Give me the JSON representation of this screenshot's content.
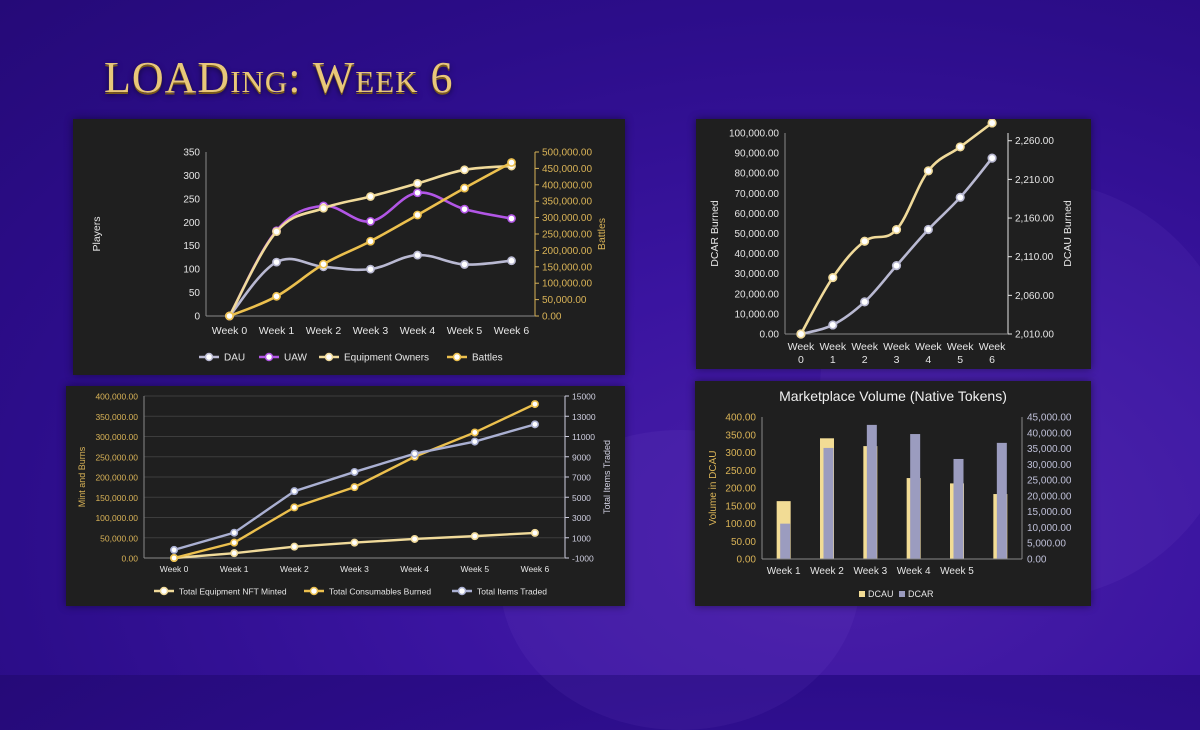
{
  "page": {
    "title": "LOADing: Week 6"
  },
  "colors": {
    "dau": "#b9b9d2",
    "uaw": "#b256e6",
    "equip": "#f0da9a",
    "battles": "#ecc04e",
    "items": "#aab0d2",
    "dcau": "#f2dc95",
    "dcar": "#9b9cbf",
    "axis_gold": "#d9b357"
  },
  "chart_data": [
    {
      "id": "players",
      "type": "line",
      "categories": [
        "Week 0",
        "Week 1",
        "Week 2",
        "Week 3",
        "Week 4",
        "Week 5",
        "Week 6"
      ],
      "ylabel": "Players",
      "y2label": "Battles",
      "ylim": [
        0,
        350
      ],
      "y_ticks": [
        "0",
        "50",
        "100",
        "150",
        "200",
        "250",
        "300",
        "350"
      ],
      "y2lim": [
        0,
        500000
      ],
      "y2_ticks": [
        "0.00",
        "50,000.00",
        "100,000.00",
        "150,000.00",
        "200,000.00",
        "250,000.00",
        "300,000.00",
        "350,000.00",
        "400,000.00",
        "450,000.00",
        "500,000.00"
      ],
      "series": [
        {
          "name": "DAU",
          "axis": "y",
          "color_key": "dau",
          "values": [
            0,
            115,
            105,
            100,
            130,
            110,
            118
          ]
        },
        {
          "name": "UAW",
          "axis": "y",
          "color_key": "uaw",
          "values": [
            0,
            182,
            235,
            202,
            263,
            228,
            208
          ]
        },
        {
          "name": "Equipment Owners",
          "axis": "y",
          "color_key": "equip",
          "values": [
            0,
            180,
            230,
            255,
            283,
            312,
            320
          ]
        },
        {
          "name": "Battles",
          "axis": "y2",
          "color_key": "battles",
          "values": [
            0,
            60000,
            158000,
            228000,
            308000,
            390000,
            468000
          ]
        }
      ],
      "legend": "bottom"
    },
    {
      "id": "dcar-dcau-burned",
      "type": "line",
      "categories": [
        "Week 0",
        "Week 1",
        "Week 2",
        "Week 3",
        "Week 4",
        "Week 5",
        "Week 6"
      ],
      "ylabel": "DCAR Burned",
      "y2label": "DCAU Burned",
      "ylim": [
        0,
        100000
      ],
      "y_ticks": [
        "0.00",
        "10,000.00",
        "20,000.00",
        "30,000.00",
        "40,000.00",
        "50,000.00",
        "60,000.00",
        "70,000.00",
        "80,000.00",
        "90,000.00",
        "100,000.00"
      ],
      "y2lim": [
        2010,
        2270
      ],
      "y2_ticks": [
        "2,010.00",
        "2,060.00",
        "2,110.00",
        "2,160.00",
        "2,210.00",
        "2,260.00"
      ],
      "series": [
        {
          "name": "DCAR Burned",
          "axis": "y",
          "color_key": "dau",
          "values": [
            0,
            4500,
            16000,
            34000,
            52000,
            68000,
            87500
          ]
        },
        {
          "name": "DCAU Burned",
          "axis": "y2",
          "color_key": "equip",
          "values": [
            2010,
            2083,
            2130,
            2145,
            2221,
            2252,
            2283
          ]
        }
      ]
    },
    {
      "id": "mint-burns",
      "type": "line",
      "categories": [
        "Week 0",
        "Week 1",
        "Week 2",
        "Week 3",
        "Week 4",
        "Week 5",
        "Week 6"
      ],
      "ylabel": "Mint and Burns",
      "y2label": "Total Items Traded",
      "ylim": [
        0,
        400000
      ],
      "y_ticks": [
        "0.00",
        "50,000.00",
        "100,000.00",
        "150,000.00",
        "200,000.00",
        "250,000.00",
        "300,000.00",
        "350,000.00",
        "400,000.00"
      ],
      "y2lim": [
        -1000,
        15000
      ],
      "y2_ticks": [
        "-1000",
        "1000",
        "3000",
        "5000",
        "7000",
        "9000",
        "11000",
        "13000",
        "15000"
      ],
      "series": [
        {
          "name": "Total Equipment NFT  Minted",
          "axis": "y",
          "color_key": "equip",
          "values": [
            0,
            12000,
            28000,
            38000,
            47000,
            54000,
            62000
          ]
        },
        {
          "name": "Total Consumables Burned",
          "axis": "y",
          "color_key": "battles",
          "values": [
            0,
            38000,
            125000,
            175000,
            250000,
            310000,
            380000
          ]
        },
        {
          "name": "Total Items Traded",
          "axis": "y2",
          "color_key": "items",
          "values": [
            -200,
            1500,
            5600,
            7500,
            9300,
            10500,
            12200
          ]
        }
      ],
      "legend": "bottom"
    },
    {
      "id": "marketplace-volume",
      "type": "bar",
      "title": "Marketplace Volume (Native Tokens)",
      "categories": [
        "Week 1",
        "Week 2",
        "Week 3",
        "Week 4",
        "Week 5",
        ""
      ],
      "ylabel": "Volume in DCAU",
      "ylim": [
        0,
        400
      ],
      "y_ticks": [
        "0.00",
        "50.00",
        "100.00",
        "150.00",
        "200.00",
        "250.00",
        "300.00",
        "350.00",
        "400.00"
      ],
      "y2lim": [
        0,
        45000
      ],
      "y2_ticks": [
        "0.00",
        "5,000.00",
        "10,000.00",
        "15,000.00",
        "20,000.00",
        "25,000.00",
        "30,000.00",
        "35,000.00",
        "40,000.00",
        "45,000.00"
      ],
      "series": [
        {
          "name": "DCAU",
          "axis": "y",
          "color_key": "dcau",
          "values": [
            163,
            340,
            318,
            228,
            213,
            183
          ]
        },
        {
          "name": "DCAR",
          "axis": "y2",
          "color_key": "dcar",
          "values": [
            11200,
            35200,
            42500,
            39600,
            31700,
            36800
          ]
        }
      ],
      "legend": "bottom"
    }
  ]
}
